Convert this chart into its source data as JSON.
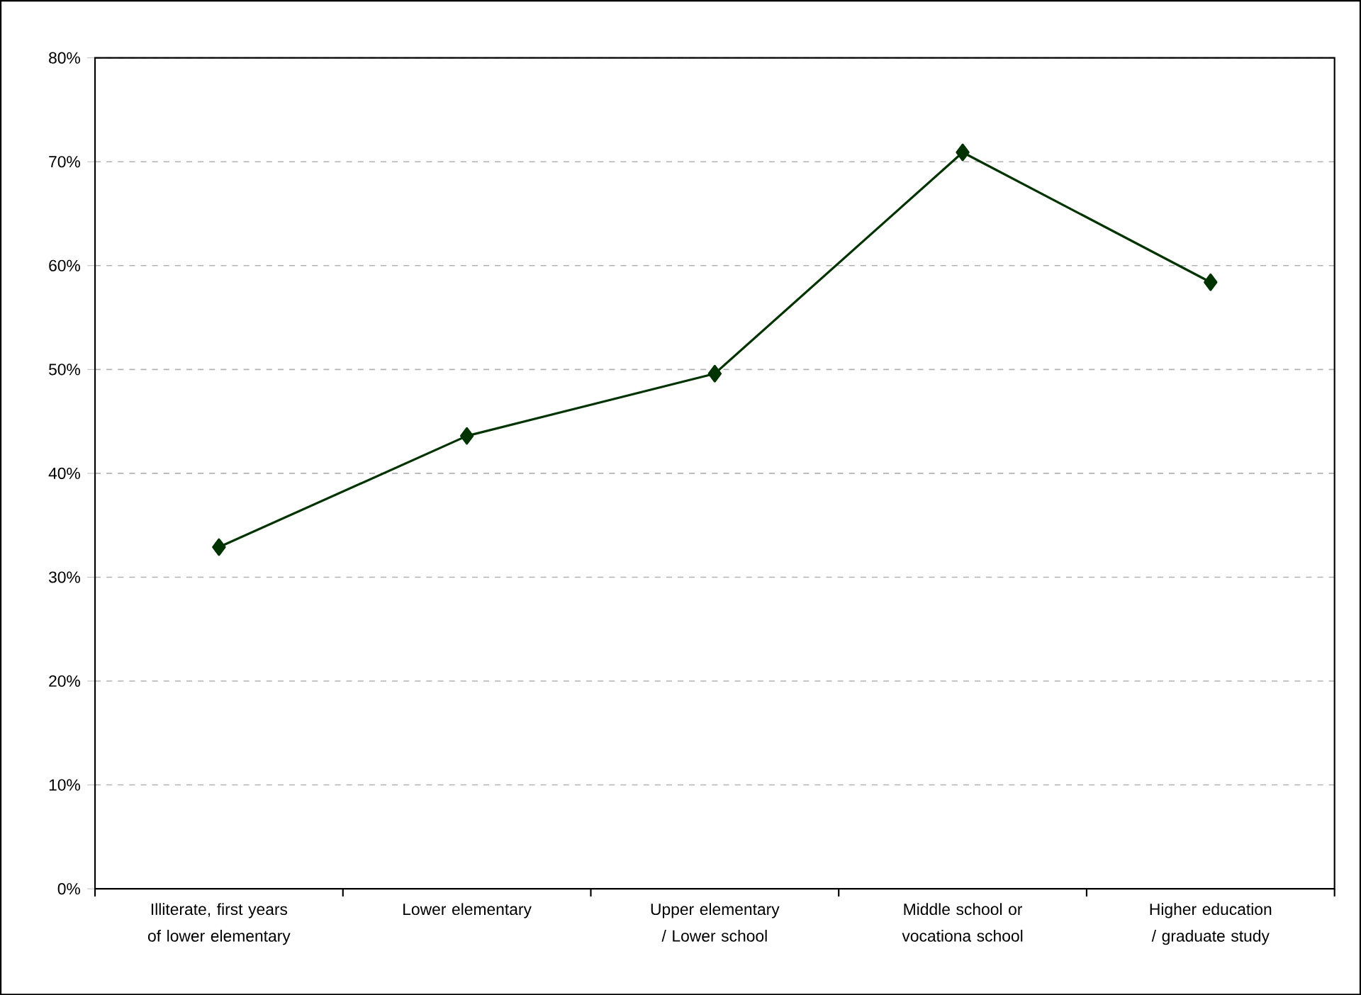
{
  "chart_data": {
    "type": "line",
    "categories": [
      "Illiterate, first years of lower elementary",
      "Lower elementary",
      "Upper elementary / Lower school",
      "Middle school or vocationa school",
      "Higher education / graduate study"
    ],
    "values": [
      32.9,
      43.6,
      49.6,
      70.9,
      58.4
    ],
    "color": "#003300",
    "marker": "diamond",
    "line_style": "solid",
    "ylim": [
      0,
      80
    ],
    "yticks": [
      {
        "value": 0,
        "label": "0%"
      },
      {
        "value": 10,
        "label": "10%"
      },
      {
        "value": 20,
        "label": "20%"
      },
      {
        "value": 30,
        "label": "30%"
      },
      {
        "value": 40,
        "label": "40%"
      },
      {
        "value": 50,
        "label": "50%"
      },
      {
        "value": 60,
        "label": "60%"
      },
      {
        "value": 70,
        "label": "70%"
      },
      {
        "value": 80,
        "label": "80%"
      }
    ],
    "grid": "y"
  }
}
